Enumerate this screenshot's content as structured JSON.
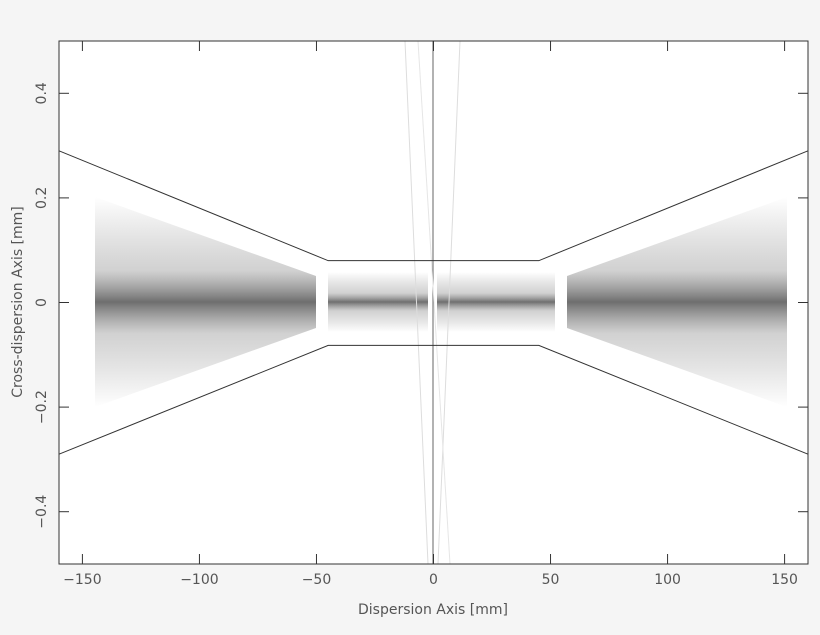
{
  "chart_data": {
    "type": "line",
    "x_label": "Dispersion Axis [mm]",
    "y_label": "Cross-dispersion Axis [mm]",
    "xlim": [
      -160,
      160
    ],
    "ylim": [
      -0.5,
      0.5
    ],
    "xticks": [
      {
        "value": -150,
        "label": "−150"
      },
      {
        "value": -100,
        "label": "−100"
      },
      {
        "value": -50,
        "label": "−50"
      },
      0,
      50,
      100,
      150
    ],
    "yticks": [
      {
        "value": -0.4,
        "label": "−0.4"
      },
      {
        "value": -0.2,
        "label": "−0.2"
      },
      0,
      0.2,
      0.4
    ],
    "series": [
      {
        "color": "#333333",
        "x": [
          -160,
          -45,
          45,
          160
        ],
        "values": [
          0.29,
          0.08,
          0.08,
          0.29
        ]
      },
      {
        "color": "#333333",
        "x": [
          -160,
          -45,
          45,
          160
        ],
        "values": [
          -0.29,
          -0.082,
          -0.082,
          -0.29
        ]
      }
    ]
  }
}
